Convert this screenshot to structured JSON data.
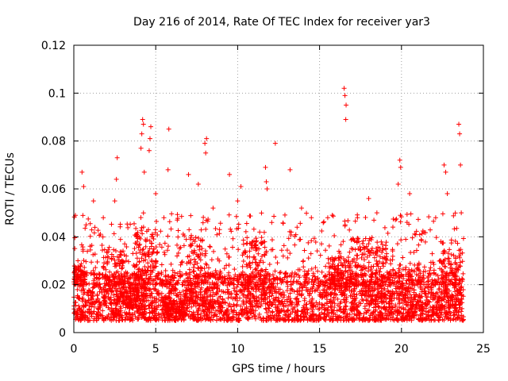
{
  "chart_data": {
    "type": "scatter",
    "title": "Day 216 of 2014, Rate Of TEC Index for receiver yar3",
    "xlabel": "GPS time / hours",
    "ylabel": "ROTI / TECUs",
    "xlim": [
      0,
      25
    ],
    "ylim": [
      0,
      0.12
    ],
    "xticks": [
      0,
      5,
      10,
      15,
      20,
      25
    ],
    "xtick_labels": [
      "0",
      "5",
      "10",
      "15",
      "20",
      "25"
    ],
    "yticks": [
      0,
      0.02,
      0.04,
      0.06,
      0.08,
      0.1,
      0.12
    ],
    "ytick_labels": [
      "0",
      "0.02",
      "0.04",
      "0.06",
      "0.08",
      "0.1",
      "0.12"
    ],
    "grid": true,
    "marker": "+",
    "color": "#ff0000",
    "series": [
      {
        "name": "ROTI",
        "sample_points": [
          [
            0.25,
            0.03
          ],
          [
            0.5,
            0.067
          ],
          [
            0.6,
            0.061
          ],
          [
            0.75,
            0.045
          ],
          [
            1.2,
            0.055
          ],
          [
            1.8,
            0.048
          ],
          [
            2.5,
            0.055
          ],
          [
            2.6,
            0.064
          ],
          [
            2.65,
            0.073
          ],
          [
            4.1,
            0.077
          ],
          [
            4.15,
            0.083
          ],
          [
            4.2,
            0.089
          ],
          [
            4.25,
            0.087
          ],
          [
            4.3,
            0.067
          ],
          [
            4.6,
            0.076
          ],
          [
            4.65,
            0.081
          ],
          [
            4.7,
            0.086
          ],
          [
            5.0,
            0.058
          ],
          [
            5.5,
            0.048
          ],
          [
            5.75,
            0.068
          ],
          [
            5.8,
            0.085
          ],
          [
            6.3,
            0.032
          ],
          [
            7.0,
            0.066
          ],
          [
            7.6,
            0.062
          ],
          [
            8.0,
            0.079
          ],
          [
            8.05,
            0.075
          ],
          [
            8.1,
            0.081
          ],
          [
            8.5,
            0.052
          ],
          [
            9.5,
            0.066
          ],
          [
            10.0,
            0.055
          ],
          [
            10.2,
            0.061
          ],
          [
            11.7,
            0.069
          ],
          [
            11.75,
            0.063
          ],
          [
            11.8,
            0.06
          ],
          [
            12.3,
            0.079
          ],
          [
            13.2,
            0.068
          ],
          [
            13.9,
            0.052
          ],
          [
            14.5,
            0.048
          ],
          [
            15.5,
            0.048
          ],
          [
            16.5,
            0.102
          ],
          [
            16.55,
            0.099
          ],
          [
            16.6,
            0.089
          ],
          [
            16.62,
            0.095
          ],
          [
            18.0,
            0.056
          ],
          [
            18.5,
            0.05
          ],
          [
            19.8,
            0.062
          ],
          [
            19.9,
            0.072
          ],
          [
            19.95,
            0.069
          ],
          [
            20.5,
            0.058
          ],
          [
            22.6,
            0.07
          ],
          [
            22.7,
            0.067
          ],
          [
            22.8,
            0.058
          ],
          [
            23.5,
            0.087
          ],
          [
            23.55,
            0.083
          ],
          [
            23.6,
            0.07
          ],
          [
            23.65,
            0.05
          ]
        ],
        "baseline_band": {
          "min": 0.005,
          "max": 0.025
        },
        "dense_spans": [
          [
            0.0,
            0.02,
            0.028
          ],
          [
            2.5,
            0.012,
            0.035
          ],
          [
            3.7,
            0.01,
            0.02
          ],
          [
            4.4,
            0.02,
            0.045
          ],
          [
            6.1,
            0.006,
            0.015
          ],
          [
            7.5,
            0.012,
            0.04
          ],
          [
            11.0,
            0.012,
            0.04
          ],
          [
            16.2,
            0.018,
            0.032
          ],
          [
            17.5,
            0.015,
            0.04
          ],
          [
            18.8,
            0.012,
            0.036
          ],
          [
            20.5,
            0.008,
            0.03
          ],
          [
            23.0,
            0.008,
            0.035
          ]
        ]
      }
    ]
  }
}
